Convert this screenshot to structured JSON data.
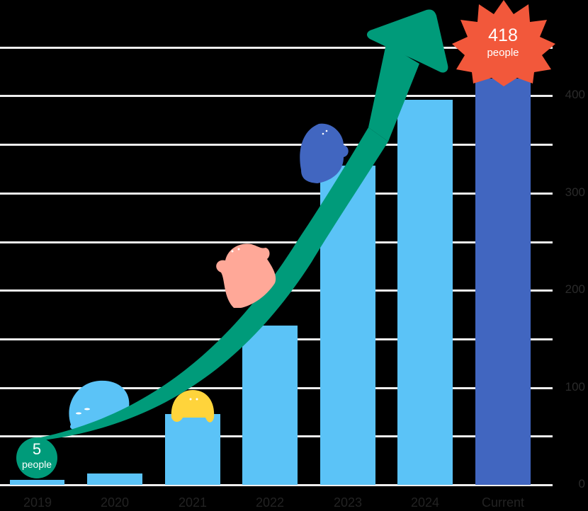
{
  "chart_data": {
    "type": "bar",
    "title": "",
    "xlabel": "",
    "ylabel": "",
    "categories": [
      "2019",
      "2020",
      "2021",
      "2022",
      "2023",
      "2024",
      "Current"
    ],
    "values": [
      5,
      12,
      73,
      164,
      328,
      396,
      418
    ],
    "unit": "people",
    "ylim": [
      0,
      450
    ],
    "yticks": [
      0,
      100,
      200,
      300,
      400
    ],
    "grid_lines_every": 50,
    "grid": true,
    "legend": null,
    "colors": {
      "bar": "#5bc3f7",
      "bar_highlight": "#4166c0",
      "arrow": "#009b7a",
      "start_badge": "#009b7a",
      "end_badge": "#f2583b",
      "background": "#000000",
      "gridline": "#eeeeee"
    },
    "annotations": [
      {
        "target": "2019",
        "value": "5",
        "unit": "people",
        "shape": "circle"
      },
      {
        "target": "Current",
        "value": "418",
        "unit": "people",
        "shape": "starburst"
      }
    ],
    "decorations": [
      "growth-arrow",
      "blue-mascot",
      "yellow-mascot",
      "pink-mascot",
      "navy-mascot"
    ]
  },
  "labels": {
    "start_value": "5",
    "start_unit": "people",
    "end_value": "418",
    "end_unit": "people"
  }
}
